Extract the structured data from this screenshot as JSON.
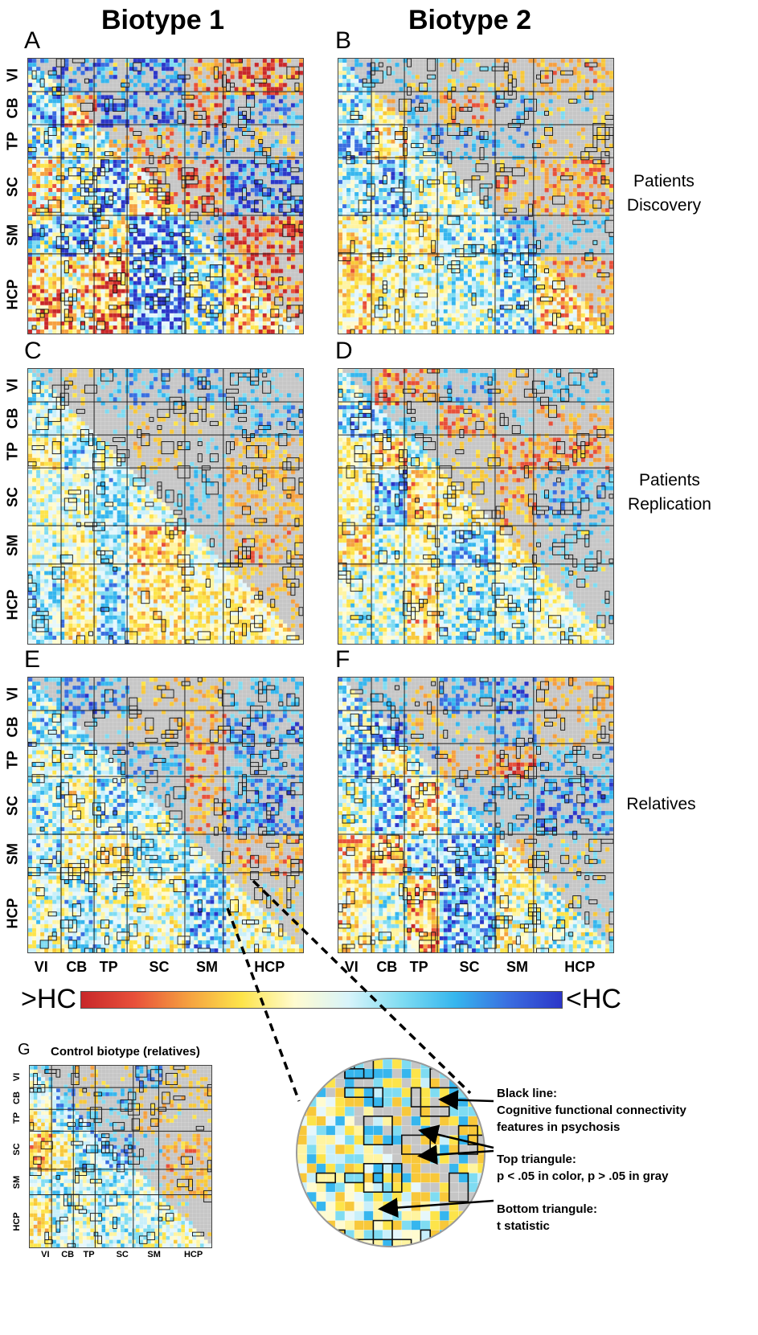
{
  "columns": [
    "Biotype 1",
    "Biotype 2"
  ],
  "panel_letters": [
    "A",
    "B",
    "C",
    "D",
    "E",
    "F",
    "G"
  ],
  "row_labels": {
    "discovery": [
      "Patients",
      "Discovery"
    ],
    "replication": [
      "Patients",
      "Replication"
    ],
    "relatives": "Relatives"
  },
  "networks": [
    "VI",
    "CB",
    "TP",
    "SC",
    "SM",
    "HCP"
  ],
  "colorbar": {
    "left_label": ">HC",
    "right_label": "<HC",
    "colors": [
      "#c8282a",
      "#e8503a",
      "#f5a040",
      "#fde44a",
      "#fffbd0",
      "#d8f4fa",
      "#7fdcf2",
      "#36b6ee",
      "#3a6ee0",
      "#2c36c8"
    ]
  },
  "control": {
    "letter": "G",
    "title": "Control biotype (relatives)"
  },
  "annotations": [
    {
      "label": "Black line:",
      "text": "Cognitive functional connectivity features in psychosis"
    },
    {
      "label": "Top triangule:",
      "text": "p < .05 in color, p > .05 in gray"
    },
    {
      "label": "Bottom triangule:",
      "text": "t statistic"
    }
  ],
  "note_lines": {
    "black": [
      "Black line:",
      "Cognitive functional connectivity",
      "features in psychosis"
    ],
    "top": [
      "Top triangule:",
      "p < .05 in color, p > .05 in gray"
    ],
    "bottom": [
      "Bottom triangule:",
      "t statistic"
    ]
  }
}
